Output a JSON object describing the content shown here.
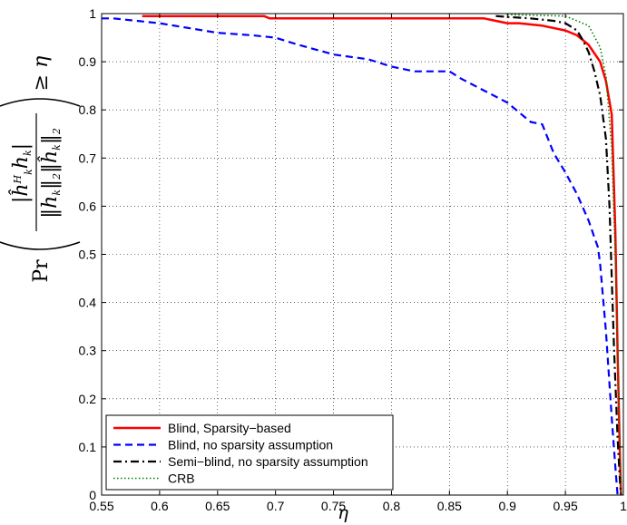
{
  "chart_data": {
    "type": "line",
    "xlabel": "η",
    "ylabel": "Pr( |ĥ_k^H h_k| / (‖h_k‖₂ ‖ĥ_k‖₂) ≥ η )",
    "xlim": [
      0.55,
      1.0
    ],
    "ylim": [
      0,
      1
    ],
    "grid": true,
    "legend_position": "bottom-left",
    "x_ticks": [
      "0.55",
      "0.6",
      "0.65",
      "0.7",
      "0.75",
      "0.8",
      "0.85",
      "0.9",
      "0.95",
      "1"
    ],
    "y_ticks": [
      "0",
      "0.1",
      "0.2",
      "0.3",
      "0.4",
      "0.5",
      "0.6",
      "0.7",
      "0.8",
      "0.9",
      "1"
    ],
    "series": [
      {
        "name": "Blind, Sparsity−based",
        "color": "#ff0000",
        "dash": "solid",
        "x": [
          0.585,
          0.69,
          0.695,
          0.87,
          0.88,
          0.89,
          0.9,
          0.91,
          0.93,
          0.95,
          0.96,
          0.97,
          0.98,
          0.985,
          0.99,
          0.993,
          0.995,
          0.997,
          0.998
        ],
        "y": [
          0.995,
          0.995,
          0.99,
          0.99,
          0.99,
          0.985,
          0.98,
          0.98,
          0.975,
          0.965,
          0.955,
          0.935,
          0.9,
          0.86,
          0.79,
          0.55,
          0.3,
          0.08,
          0.0
        ]
      },
      {
        "name": "Blind, no sparsity assumption",
        "color": "#0000ff",
        "dash": "dashed",
        "x": [
          0.55,
          0.56,
          0.6,
          0.65,
          0.68,
          0.7,
          0.72,
          0.75,
          0.78,
          0.8,
          0.82,
          0.84,
          0.85,
          0.86,
          0.88,
          0.9,
          0.92,
          0.93,
          0.94,
          0.95,
          0.96,
          0.97,
          0.975,
          0.978,
          0.98,
          0.985,
          0.99,
          0.993,
          0.995
        ],
        "y": [
          0.99,
          0.99,
          0.98,
          0.96,
          0.955,
          0.95,
          0.935,
          0.915,
          0.905,
          0.89,
          0.88,
          0.88,
          0.88,
          0.865,
          0.84,
          0.815,
          0.775,
          0.77,
          0.71,
          0.67,
          0.625,
          0.57,
          0.535,
          0.515,
          0.48,
          0.34,
          0.16,
          0.06,
          0.0
        ]
      },
      {
        "name": "Semi−blind, no sparsity assumption",
        "color": "#000000",
        "dash": "dashdot",
        "x": [
          0.89,
          0.9,
          0.92,
          0.94,
          0.95,
          0.96,
          0.965,
          0.97,
          0.975,
          0.98,
          0.985,
          0.988,
          0.99,
          0.992,
          0.995,
          0.997,
          0.998
        ],
        "y": [
          0.995,
          0.993,
          0.99,
          0.985,
          0.98,
          0.965,
          0.945,
          0.92,
          0.88,
          0.83,
          0.74,
          0.6,
          0.45,
          0.3,
          0.12,
          0.03,
          0.0
        ]
      },
      {
        "name": "CRB",
        "color": "#008000",
        "dash": "dotted",
        "x": [
          0.9,
          0.95,
          0.97,
          0.98,
          0.985,
          0.99,
          0.993,
          0.995,
          0.997,
          0.998
        ],
        "y": [
          0.998,
          0.995,
          0.975,
          0.93,
          0.87,
          0.72,
          0.5,
          0.3,
          0.1,
          0.0
        ]
      }
    ]
  }
}
